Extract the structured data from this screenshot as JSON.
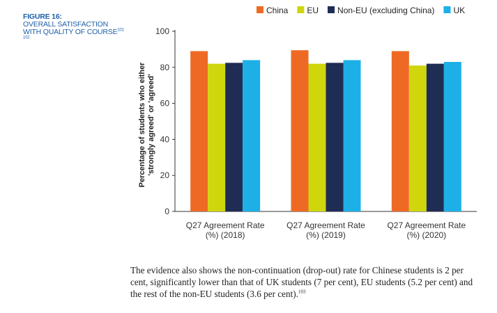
{
  "figure": {
    "number": "FIGURE 16:",
    "title": "OVERALL SATISFACTION WITH QUALITY OF COURSE",
    "refs": "101 102"
  },
  "colors": {
    "China": "#ee6a24",
    "EU": "#cfd60b",
    "Non-EU (excluding China)": "#1f2d55",
    "UK": "#1cb0e6",
    "axis": "#333333",
    "label_blue": "#1f5fa8"
  },
  "chart_data": {
    "type": "bar",
    "title": "",
    "ylabel_lines": [
      "Percentage of students who either",
      "'strongly agreed' or 'agreed'"
    ],
    "xlabel": "",
    "ylim": [
      0,
      100
    ],
    "yticks": [
      0,
      20,
      40,
      60,
      80,
      100
    ],
    "grid": false,
    "legend_position": "top",
    "categories": [
      [
        "Q27 Agreement Rate",
        "(%) (2018)"
      ],
      [
        "Q27 Agreement Rate",
        "(%) (2019)"
      ],
      [
        "Q27 Agreement Rate",
        "(%) (2020)"
      ]
    ],
    "series": [
      {
        "name": "China",
        "values": [
          89,
          89.5,
          89
        ]
      },
      {
        "name": "EU",
        "values": [
          82,
          82,
          81
        ]
      },
      {
        "name": "Non-EU (excluding China)",
        "values": [
          82.5,
          82.5,
          82
        ]
      },
      {
        "name": "UK",
        "values": [
          84,
          84,
          83
        ]
      }
    ]
  },
  "paragraph": {
    "text": "The evidence also shows the non-continuation (drop-out) rate for Chinese students is 2 per cent, significantly lower than that of UK students (7 per cent), EU students (5.2 per cent) and the rest of the non-EU students (3.6 per cent).",
    "ref": "103"
  }
}
